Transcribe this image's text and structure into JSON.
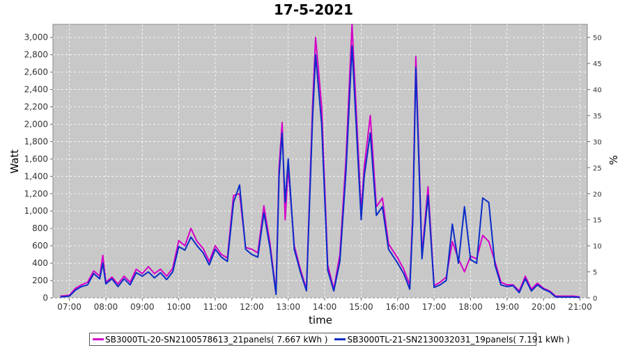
{
  "chart_data": {
    "type": "line",
    "title": "17-5-2021",
    "xlabel": "time",
    "ylabel": "Watt",
    "y2label": "%",
    "ylim": [
      0,
      3150
    ],
    "y2lim": [
      0,
      52.5
    ],
    "xlim": [
      "06:33",
      "21:12"
    ],
    "grid": true,
    "legend_position": "bottom",
    "x_ticks": [
      "07:00",
      "08:00",
      "09:00",
      "10:00",
      "11:00",
      "12:00",
      "13:00",
      "14:00",
      "15:00",
      "16:00",
      "17:00",
      "18:00",
      "19:00",
      "20:00",
      "21:00"
    ],
    "y_ticks": [
      "0",
      "200",
      "400",
      "600",
      "800",
      "1,000",
      "1,200",
      "1,400",
      "1,600",
      "1,800",
      "2,000",
      "2,200",
      "2,400",
      "2,600",
      "2,800",
      "3,000"
    ],
    "y_tick_values": [
      0,
      200,
      400,
      600,
      800,
      1000,
      1200,
      1400,
      1600,
      1800,
      2000,
      2200,
      2400,
      2600,
      2800,
      3000
    ],
    "y2_ticks": [
      "0",
      "5",
      "10",
      "15",
      "20",
      "25",
      "30",
      "35",
      "40",
      "45",
      "50"
    ],
    "y2_tick_values": [
      0,
      5,
      10,
      15,
      20,
      25,
      30,
      35,
      40,
      45,
      50
    ],
    "series": [
      {
        "name": "SB3000TL-20-SN2100578613_21panels( 7.667 kWh )",
        "color": "#d400c8",
        "x": [
          "06:45",
          "07:00",
          "07:10",
          "07:20",
          "07:30",
          "07:40",
          "07:50",
          "07:55",
          "08:00",
          "08:10",
          "08:20",
          "08:30",
          "08:40",
          "08:50",
          "09:00",
          "09:10",
          "09:20",
          "09:30",
          "09:40",
          "09:50",
          "10:00",
          "10:10",
          "10:20",
          "10:30",
          "10:40",
          "10:50",
          "11:00",
          "11:10",
          "11:20",
          "11:30",
          "11:40",
          "11:50",
          "12:00",
          "12:10",
          "12:20",
          "12:30",
          "12:40",
          "12:45",
          "12:50",
          "12:55",
          "13:00",
          "13:10",
          "13:20",
          "13:30",
          "13:40",
          "13:45",
          "13:55",
          "14:05",
          "14:15",
          "14:25",
          "14:35",
          "14:45",
          "15:00",
          "15:05",
          "15:15",
          "15:25",
          "15:35",
          "15:45",
          "16:00",
          "16:10",
          "16:20",
          "16:25",
          "16:30",
          "16:40",
          "16:50",
          "17:00",
          "17:10",
          "17:20",
          "17:30",
          "17:40",
          "17:50",
          "18:00",
          "18:10",
          "18:20",
          "18:30",
          "18:40",
          "18:50",
          "19:00",
          "19:10",
          "19:20",
          "19:30",
          "19:40",
          "19:50",
          "20:00",
          "20:10",
          "20:20",
          "20:30",
          "20:40",
          "20:50",
          "21:00"
        ],
        "values": [
          20,
          30,
          110,
          150,
          180,
          310,
          250,
          490,
          180,
          240,
          160,
          250,
          180,
          330,
          280,
          360,
          280,
          330,
          250,
          340,
          660,
          600,
          800,
          650,
          570,
          420,
          600,
          500,
          460,
          1180,
          1200,
          580,
          560,
          520,
          1060,
          630,
          60,
          1500,
          2020,
          900,
          1500,
          600,
          330,
          100,
          2200,
          3000,
          2200,
          380,
          100,
          500,
          1600,
          3150,
          1000,
          1500,
          2100,
          1050,
          1150,
          620,
          460,
          330,
          150,
          1000,
          2780,
          500,
          1280,
          140,
          180,
          240,
          650,
          450,
          300,
          480,
          450,
          720,
          650,
          420,
          180,
          150,
          150,
          80,
          250,
          100,
          170,
          110,
          80,
          20,
          20,
          20,
          20,
          10
        ]
      },
      {
        "name": "SB3000TL-21-SN2130032031_19panels( 7.191 kWh )",
        "color": "#0a2cc8",
        "x": [
          "06:45",
          "07:00",
          "07:10",
          "07:20",
          "07:30",
          "07:40",
          "07:50",
          "07:55",
          "08:00",
          "08:10",
          "08:20",
          "08:30",
          "08:40",
          "08:50",
          "09:00",
          "09:10",
          "09:20",
          "09:30",
          "09:40",
          "09:50",
          "10:00",
          "10:10",
          "10:20",
          "10:30",
          "10:40",
          "10:50",
          "11:00",
          "11:10",
          "11:20",
          "11:30",
          "11:40",
          "11:50",
          "12:00",
          "12:10",
          "12:20",
          "12:30",
          "12:40",
          "12:45",
          "12:50",
          "12:55",
          "13:00",
          "13:10",
          "13:20",
          "13:30",
          "13:40",
          "13:45",
          "13:55",
          "14:05",
          "14:15",
          "14:25",
          "14:35",
          "14:45",
          "15:00",
          "15:05",
          "15:15",
          "15:25",
          "15:35",
          "15:45",
          "16:00",
          "16:10",
          "16:20",
          "16:25",
          "16:30",
          "16:40",
          "16:50",
          "17:00",
          "17:10",
          "17:20",
          "17:30",
          "17:40",
          "17:50",
          "18:00",
          "18:10",
          "18:20",
          "18:30",
          "18:40",
          "18:50",
          "19:00",
          "19:10",
          "19:20",
          "19:30",
          "19:40",
          "19:50",
          "20:00",
          "20:10",
          "20:20",
          "20:30",
          "20:40",
          "20:50",
          "21:00"
        ],
        "values": [
          10,
          20,
          90,
          130,
          150,
          280,
          220,
          400,
          160,
          220,
          130,
          220,
          150,
          290,
          250,
          300,
          230,
          290,
          210,
          300,
          590,
          550,
          700,
          600,
          520,
          380,
          560,
          470,
          420,
          1100,
          1300,
          560,
          500,
          470,
          980,
          580,
          40,
          1400,
          1900,
          1100,
          1600,
          560,
          300,
          80,
          2050,
          2800,
          2000,
          320,
          80,
          420,
          1450,
          2900,
          900,
          1400,
          1900,
          950,
          1050,
          560,
          400,
          280,
          100,
          900,
          2650,
          450,
          1180,
          120,
          150,
          200,
          850,
          400,
          1050,
          440,
          400,
          1150,
          1100,
          380,
          150,
          130,
          140,
          60,
          220,
          80,
          150,
          100,
          70,
          10,
          10,
          10,
          10,
          5
        ]
      }
    ]
  }
}
